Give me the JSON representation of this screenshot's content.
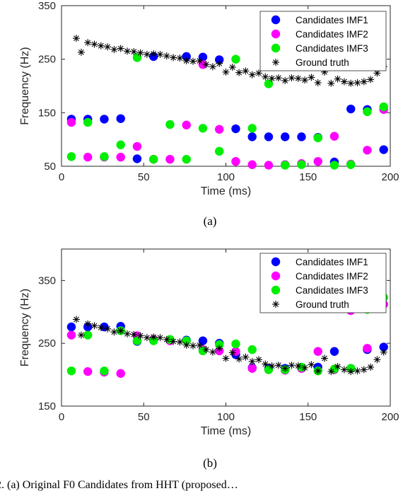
{
  "chart_data": [
    {
      "type": "scatter",
      "caption": "(a)",
      "title": "",
      "xlabel": "Time (ms)",
      "ylabel": "Frequency (Hz)",
      "xlim": [
        0,
        200
      ],
      "ylim": [
        50,
        350
      ],
      "xticks": [
        0,
        50,
        100,
        150,
        200
      ],
      "yticks": [
        50,
        150,
        250,
        350
      ],
      "grid": false,
      "legend_position": "top-right",
      "series": [
        {
          "name": "Candidates IMF1",
          "marker": "circle",
          "color": "#0000ff",
          "points": [
            [
              6,
              138
            ],
            [
              16,
              138
            ],
            [
              26,
              138
            ],
            [
              36,
              139
            ],
            [
              46,
              64
            ],
            [
              56,
              255
            ],
            [
              76,
              255
            ],
            [
              86,
              254
            ],
            [
              96,
              249
            ],
            [
              106,
              120
            ],
            [
              116,
              105
            ],
            [
              126,
              105
            ],
            [
              136,
              105
            ],
            [
              146,
              105
            ],
            [
              156,
              104
            ],
            [
              166,
              58
            ],
            [
              176,
              157
            ],
            [
              186,
              156
            ],
            [
              196,
              81
            ]
          ]
        },
        {
          "name": "Candidates IMF2",
          "marker": "circle",
          "color": "#ff00ff",
          "points": [
            [
              6,
              132
            ],
            [
              16,
              67
            ],
            [
              26,
              67
            ],
            [
              36,
              67
            ],
            [
              46,
              87
            ],
            [
              56,
              63
            ],
            [
              66,
              63
            ],
            [
              76,
              127
            ],
            [
              86,
              240
            ],
            [
              96,
              119
            ],
            [
              106,
              59
            ],
            [
              116,
              53
            ],
            [
              126,
              52
            ],
            [
              136,
              53
            ],
            [
              146,
              55
            ],
            [
              156,
              59
            ],
            [
              166,
              106
            ],
            [
              176,
              54
            ],
            [
              186,
              80
            ],
            [
              196,
              156
            ]
          ]
        },
        {
          "name": "Candidates IMF3",
          "marker": "circle",
          "color": "#00ee00",
          "points": [
            [
              6,
              68
            ],
            [
              16,
              132
            ],
            [
              26,
              68
            ],
            [
              36,
              90
            ],
            [
              46,
              253
            ],
            [
              56,
              63
            ],
            [
              66,
              128
            ],
            [
              76,
              63
            ],
            [
              86,
              121
            ],
            [
              96,
              78
            ],
            [
              106,
              250
            ],
            [
              116,
              121
            ],
            [
              126,
              204
            ],
            [
              136,
              52
            ],
            [
              146,
              53
            ],
            [
              156,
              103
            ],
            [
              166,
              52
            ],
            [
              176,
              53
            ],
            [
              186,
              152
            ],
            [
              196,
              161
            ]
          ]
        },
        {
          "name": "Ground truth",
          "marker": "asterisk",
          "color": "#000000",
          "points": [
            [
              9,
              289
            ],
            [
              12,
              263
            ],
            [
              16,
              281
            ],
            [
              20,
              278
            ],
            [
              24,
              275
            ],
            [
              28,
              273
            ],
            [
              32,
              268
            ],
            [
              36,
              270
            ],
            [
              40,
              265
            ],
            [
              44,
              264
            ],
            [
              48,
              262
            ],
            [
              52,
              259
            ],
            [
              56,
              260
            ],
            [
              60,
              259
            ],
            [
              64,
              256
            ],
            [
              68,
              253
            ],
            [
              72,
              252
            ],
            [
              76,
              247
            ],
            [
              80,
              246
            ],
            [
              84,
              247
            ],
            [
              88,
              240
            ],
            [
              92,
              236
            ],
            [
              96,
              242
            ],
            [
              100,
              226
            ],
            [
              104,
              235
            ],
            [
              108,
              225
            ],
            [
              112,
              228
            ],
            [
              116,
              221
            ],
            [
              120,
              224
            ],
            [
              124,
              217
            ],
            [
              128,
              214
            ],
            [
              132,
              215
            ],
            [
              136,
              210
            ],
            [
              140,
              215
            ],
            [
              144,
              214
            ],
            [
              148,
              211
            ],
            [
              152,
              216
            ],
            [
              156,
              206
            ],
            [
              160,
              226
            ],
            [
              164,
              205
            ],
            [
              168,
              213
            ],
            [
              172,
              208
            ],
            [
              176,
              205
            ],
            [
              180,
              206
            ],
            [
              184,
              208
            ],
            [
              188,
              212
            ],
            [
              192,
              224
            ],
            [
              196,
              236
            ]
          ]
        }
      ]
    },
    {
      "type": "scatter",
      "caption": "(b)",
      "title": "",
      "xlabel": "Time (ms)",
      "ylabel": "Frequency (Hz)",
      "xlim": [
        0,
        200
      ],
      "ylim": [
        150,
        400
      ],
      "xticks": [
        0,
        50,
        100,
        150,
        200
      ],
      "yticks": [
        150,
        250,
        350
      ],
      "grid": false,
      "legend_position": "top-right",
      "series": [
        {
          "name": "Candidates IMF1",
          "marker": "circle",
          "color": "#0000ff",
          "points": [
            [
              6,
              276
            ],
            [
              16,
              276
            ],
            [
              26,
              276
            ],
            [
              36,
              277
            ],
            [
              46,
              253
            ],
            [
              56,
              255
            ],
            [
              76,
              255
            ],
            [
              86,
              254
            ],
            [
              96,
              250
            ],
            [
              106,
              232
            ],
            [
              116,
              211
            ],
            [
              126,
              210
            ],
            [
              136,
              210
            ],
            [
              146,
              211
            ],
            [
              156,
              212
            ],
            [
              166,
              237
            ],
            [
              176,
              210
            ],
            [
              186,
              240
            ],
            [
              196,
              244
            ]
          ]
        },
        {
          "name": "Candidates IMF2",
          "marker": "circle",
          "color": "#ff00ff",
          "points": [
            [
              6,
              263
            ],
            [
              16,
              205
            ],
            [
              26,
              204
            ],
            [
              36,
              202
            ],
            [
              46,
              262
            ],
            [
              56,
              256
            ],
            [
              66,
              254
            ],
            [
              76,
              254
            ],
            [
              86,
              240
            ],
            [
              96,
              238
            ],
            [
              106,
              237
            ],
            [
              116,
              210
            ],
            [
              126,
              208
            ],
            [
              136,
              207
            ],
            [
              146,
              210
            ],
            [
              156,
              237
            ],
            [
              166,
              208
            ],
            [
              176,
              302
            ],
            [
              186,
              242
            ],
            [
              196,
              312
            ]
          ]
        },
        {
          "name": "Candidates IMF3",
          "marker": "circle",
          "color": "#00ee00",
          "points": [
            [
              6,
              206
            ],
            [
              16,
              263
            ],
            [
              26,
              206
            ],
            [
              36,
              270
            ],
            [
              46,
              254
            ],
            [
              56,
              254
            ],
            [
              66,
              256
            ],
            [
              76,
              254
            ],
            [
              86,
              238
            ],
            [
              96,
              248
            ],
            [
              106,
              249
            ],
            [
              116,
              240
            ],
            [
              126,
              208
            ],
            [
              136,
              208
            ],
            [
              146,
              212
            ],
            [
              156,
              206
            ],
            [
              166,
              209
            ],
            [
              176,
              210
            ],
            [
              186,
              304
            ],
            [
              196,
              323
            ]
          ]
        },
        {
          "name": "Ground truth",
          "marker": "asterisk",
          "color": "#000000",
          "points": [
            [
              9,
              288
            ],
            [
              12,
              263
            ],
            [
              16,
              281
            ],
            [
              20,
              278
            ],
            [
              24,
              275
            ],
            [
              28,
              273
            ],
            [
              32,
              268
            ],
            [
              36,
              270
            ],
            [
              40,
              265
            ],
            [
              44,
              264
            ],
            [
              48,
              262
            ],
            [
              52,
              259
            ],
            [
              56,
              260
            ],
            [
              60,
              259
            ],
            [
              64,
              256
            ],
            [
              68,
              253
            ],
            [
              72,
              252
            ],
            [
              76,
              247
            ],
            [
              80,
              246
            ],
            [
              84,
              247
            ],
            [
              88,
              240
            ],
            [
              92,
              236
            ],
            [
              96,
              242
            ],
            [
              100,
              226
            ],
            [
              104,
              235
            ],
            [
              108,
              225
            ],
            [
              112,
              228
            ],
            [
              116,
              221
            ],
            [
              120,
              224
            ],
            [
              124,
              217
            ],
            [
              128,
              214
            ],
            [
              132,
              215
            ],
            [
              136,
              210
            ],
            [
              140,
              215
            ],
            [
              144,
              214
            ],
            [
              148,
              211
            ],
            [
              152,
              216
            ],
            [
              156,
              206
            ],
            [
              160,
              226
            ],
            [
              164,
              205
            ],
            [
              168,
              213
            ],
            [
              172,
              208
            ],
            [
              176,
              205
            ],
            [
              180,
              206
            ],
            [
              184,
              208
            ],
            [
              188,
              212
            ],
            [
              192,
              224
            ],
            [
              196,
              236
            ]
          ]
        }
      ]
    }
  ],
  "footer_text": "2.  (a) Original F0 Candidates from HHT (proposed…"
}
